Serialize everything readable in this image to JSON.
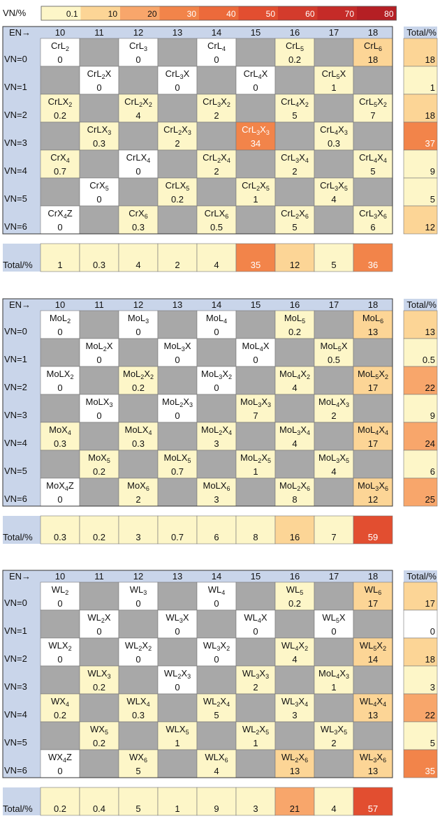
{
  "legend": {
    "label": "VN/%",
    "bins": [
      {
        "label": "0.1",
        "color": "#fdf6c8"
      },
      {
        "label": "10",
        "color": "#fcd596"
      },
      {
        "label": "20",
        "color": "#f8a66b"
      },
      {
        "label": "30",
        "color": "#f2844a"
      },
      {
        "label": "40",
        "color": "#ec6a3b"
      },
      {
        "label": "50",
        "color": "#e24e30"
      },
      {
        "label": "60",
        "color": "#d33b2c"
      },
      {
        "label": "70",
        "color": "#c52b28"
      },
      {
        "label": "80",
        "color": "#b51f24"
      }
    ]
  },
  "colors": {
    "header_bg": "#c9d5ea",
    "empty_cell": "#a8a8a8",
    "zero_cell": "#ffffff"
  },
  "chart_data": [
    {
      "type": "heatmap",
      "en_header": "EN→",
      "total_col_header": "Total/%",
      "total_row_label": "Total/%",
      "en": [
        "10",
        "11",
        "12",
        "13",
        "14",
        "15",
        "16",
        "17",
        "18"
      ],
      "vn": [
        "VN=0",
        "VN=1",
        "VN=2",
        "VN=3",
        "VN=4",
        "VN=5",
        "VN=6"
      ],
      "cells": [
        [
          [
            "CrL",
            "2",
            ""
          ],
          "0"
        ],
        [
          null
        ],
        [
          [
            "CrL",
            "3",
            ""
          ],
          "0"
        ],
        [
          null
        ],
        [
          [
            "CrL",
            "4",
            ""
          ],
          "0"
        ],
        [
          null
        ],
        [
          [
            "CrL",
            "5",
            ""
          ],
          "0.2"
        ],
        [
          null
        ],
        [
          [
            "CrL",
            "6",
            ""
          ],
          "18"
        ],
        [
          null
        ],
        [
          [
            "CrL",
            "2",
            "X"
          ],
          "0"
        ],
        [
          null
        ],
        [
          [
            "CrL",
            "3",
            "X"
          ],
          "0"
        ],
        [
          null
        ],
        [
          [
            "CrL",
            "4",
            "X"
          ],
          "0"
        ],
        [
          null
        ],
        [
          [
            "CrL",
            "5",
            "X"
          ],
          "1"
        ],
        [
          null
        ],
        [
          [
            "CrLX",
            "2",
            ""
          ],
          "0.2"
        ],
        [
          null
        ],
        [
          [
            "CrL",
            "2",
            "X",
            "2"
          ],
          "4"
        ],
        [
          null
        ],
        [
          [
            "CrL",
            "3",
            "X",
            "2"
          ],
          "2"
        ],
        [
          null
        ],
        [
          [
            "CrL",
            "4",
            "X",
            "2"
          ],
          "5"
        ],
        [
          null
        ],
        [
          [
            "CrL",
            "5",
            "X",
            "2"
          ],
          "7"
        ],
        [
          null
        ],
        [
          [
            "CrLX",
            "3",
            ""
          ],
          "0.3"
        ],
        [
          null
        ],
        [
          [
            "CrL",
            "2",
            "X",
            "3"
          ],
          "2"
        ],
        [
          null
        ],
        [
          [
            "CrL",
            "3",
            "X",
            "3"
          ],
          "34"
        ],
        [
          null
        ],
        [
          [
            "CrL",
            "4",
            "X",
            "3"
          ],
          "0.3"
        ],
        [
          null
        ],
        [
          [
            "CrX",
            "4",
            ""
          ],
          "0.7"
        ],
        [
          null
        ],
        [
          [
            "CrLX",
            "4",
            ""
          ],
          "0"
        ],
        [
          null
        ],
        [
          [
            "CrL",
            "2",
            "X",
            "4"
          ],
          "2"
        ],
        [
          null
        ],
        [
          [
            "CrL",
            "3",
            "X",
            "4"
          ],
          "2"
        ],
        [
          null
        ],
        [
          [
            "CrL",
            "4",
            "X",
            "4"
          ],
          "5"
        ],
        [
          null
        ],
        [
          [
            "CrX",
            "5",
            ""
          ],
          "0"
        ],
        [
          null
        ],
        [
          [
            "CrLX",
            "5",
            ""
          ],
          "0.2"
        ],
        [
          null
        ],
        [
          [
            "CrL",
            "2",
            "X",
            "5"
          ],
          "1"
        ],
        [
          null
        ],
        [
          [
            "CrL",
            "3",
            "X",
            "5"
          ],
          "4"
        ],
        [
          null
        ],
        [
          [
            "CrX",
            "4",
            "Z"
          ],
          "0"
        ],
        [
          null
        ],
        [
          [
            "CrX",
            "6",
            ""
          ],
          "0.3"
        ],
        [
          null
        ],
        [
          [
            "CrLX",
            "6",
            ""
          ],
          "0.5"
        ],
        [
          null
        ],
        [
          [
            "CrL",
            "2",
            "X",
            "6"
          ],
          "5"
        ],
        [
          null
        ],
        [
          [
            "CrL",
            "3",
            "X",
            "6"
          ],
          "6"
        ]
      ],
      "row_totals": [
        "18",
        "1",
        "18",
        "37",
        "9",
        "5",
        "12"
      ],
      "col_totals": [
        "1",
        "0.3",
        "4",
        "2",
        "4",
        "35",
        "12",
        "5",
        "36"
      ]
    },
    {
      "type": "heatmap",
      "en_header": "EN→",
      "total_col_header": "Total/%",
      "total_row_label": "Total/%",
      "en": [
        "10",
        "11",
        "12",
        "13",
        "14",
        "15",
        "16",
        "17",
        "18"
      ],
      "vn": [
        "VN=0",
        "VN=1",
        "VN=2",
        "VN=3",
        "VN=4",
        "VN=5",
        "VN=6"
      ],
      "cells": [
        [
          [
            "MoL",
            "2",
            ""
          ],
          "0"
        ],
        [
          null
        ],
        [
          [
            "MoL",
            "3",
            ""
          ],
          "0"
        ],
        [
          null
        ],
        [
          [
            "MoL",
            "4",
            ""
          ],
          "0"
        ],
        [
          null
        ],
        [
          [
            "MoL",
            "5",
            ""
          ],
          "0.2"
        ],
        [
          null
        ],
        [
          [
            "MoL",
            "6",
            ""
          ],
          "13"
        ],
        [
          null
        ],
        [
          [
            "MoL",
            "2",
            "X"
          ],
          "0"
        ],
        [
          null
        ],
        [
          [
            "MoL",
            "3",
            "X"
          ],
          "0"
        ],
        [
          null
        ],
        [
          [
            "MoL",
            "4",
            "X"
          ],
          "0"
        ],
        [
          null
        ],
        [
          [
            "MoL",
            "5",
            "X"
          ],
          "0.5"
        ],
        [
          null
        ],
        [
          [
            "MoLX",
            "2",
            ""
          ],
          "0"
        ],
        [
          null
        ],
        [
          [
            "MoL",
            "2",
            "X",
            "2"
          ],
          "0.2"
        ],
        [
          null
        ],
        [
          [
            "MoL",
            "3",
            "X",
            "2"
          ],
          "0"
        ],
        [
          null
        ],
        [
          [
            "MoL",
            "4",
            "X",
            "2"
          ],
          "4"
        ],
        [
          null
        ],
        [
          [
            "MoL",
            "5",
            "X",
            "2"
          ],
          "17"
        ],
        [
          null
        ],
        [
          [
            "MoLX",
            "3",
            ""
          ],
          "0"
        ],
        [
          null
        ],
        [
          [
            "MoL",
            "2",
            "X",
            "3"
          ],
          "0"
        ],
        [
          null
        ],
        [
          [
            "MoL",
            "3",
            "X",
            "3"
          ],
          "7"
        ],
        [
          null
        ],
        [
          [
            "MoL",
            "4",
            "X",
            "3"
          ],
          "2"
        ],
        [
          null
        ],
        [
          [
            "MoX",
            "4",
            ""
          ],
          "0.3"
        ],
        [
          null
        ],
        [
          [
            "MoLX",
            "4",
            ""
          ],
          "0.3"
        ],
        [
          null
        ],
        [
          [
            "MoL",
            "2",
            "X",
            "4"
          ],
          "3"
        ],
        [
          null
        ],
        [
          [
            "MoL",
            "3",
            "X",
            "4"
          ],
          "4"
        ],
        [
          null
        ],
        [
          [
            "MoL",
            "4",
            "X",
            "4"
          ],
          "17"
        ],
        [
          null
        ],
        [
          [
            "MoX",
            "5",
            ""
          ],
          "0.2"
        ],
        [
          null
        ],
        [
          [
            "MoLX",
            "5",
            ""
          ],
          "0.7"
        ],
        [
          null
        ],
        [
          [
            "MoL",
            "2",
            "X",
            "5"
          ],
          "1"
        ],
        [
          null
        ],
        [
          [
            "MoL",
            "3",
            "X",
            "5"
          ],
          "4"
        ],
        [
          null
        ],
        [
          [
            "MoX",
            "4",
            "Z"
          ],
          "0"
        ],
        [
          null
        ],
        [
          [
            "MoX",
            "6",
            ""
          ],
          "2"
        ],
        [
          null
        ],
        [
          [
            "MoLX",
            "6",
            ""
          ],
          "3"
        ],
        [
          null
        ],
        [
          [
            "MoL",
            "2",
            "X",
            "6"
          ],
          "8"
        ],
        [
          null
        ],
        [
          [
            "MoL",
            "3",
            "X",
            "6"
          ],
          "12"
        ]
      ],
      "row_totals": [
        "13",
        "0.5",
        "22",
        "9",
        "24",
        "6",
        "25"
      ],
      "col_totals": [
        "0.3",
        "0.2",
        "3",
        "0.7",
        "6",
        "8",
        "16",
        "7",
        "59"
      ]
    },
    {
      "type": "heatmap",
      "en_header": "EN→",
      "total_col_header": "Total/%",
      "total_row_label": "Total/%",
      "en": [
        "10",
        "11",
        "12",
        "13",
        "14",
        "15",
        "16",
        "17",
        "18"
      ],
      "vn": [
        "VN=0",
        "VN=1",
        "VN=2",
        "VN=3",
        "VN=4",
        "VN=5",
        "VN=6"
      ],
      "cells": [
        [
          [
            "WL",
            "2",
            ""
          ],
          "0"
        ],
        [
          null
        ],
        [
          [
            "WL",
            "3",
            ""
          ],
          "0"
        ],
        [
          null
        ],
        [
          [
            "WL",
            "4",
            ""
          ],
          "0"
        ],
        [
          null
        ],
        [
          [
            "WL",
            "5",
            ""
          ],
          "0.2"
        ],
        [
          null
        ],
        [
          [
            "WL",
            "6",
            ""
          ],
          "17"
        ],
        [
          null
        ],
        [
          [
            "WL",
            "2",
            "X"
          ],
          "0"
        ],
        [
          null
        ],
        [
          [
            "WL",
            "3",
            "X"
          ],
          "0"
        ],
        [
          null
        ],
        [
          [
            "WL",
            "4",
            "X"
          ],
          "0"
        ],
        [
          null
        ],
        [
          [
            "WL",
            "5",
            "X"
          ],
          "0"
        ],
        [
          null
        ],
        [
          [
            "WLX",
            "2",
            ""
          ],
          "0"
        ],
        [
          null
        ],
        [
          [
            "WL",
            "2",
            "X",
            "2"
          ],
          "0"
        ],
        [
          null
        ],
        [
          [
            "WL",
            "3",
            "X",
            "2"
          ],
          "0"
        ],
        [
          null
        ],
        [
          [
            "WL",
            "4",
            "X",
            "2"
          ],
          "4"
        ],
        [
          null
        ],
        [
          [
            "WL",
            "5",
            "X",
            "2"
          ],
          "14"
        ],
        [
          null
        ],
        [
          [
            "WLX",
            "3",
            ""
          ],
          "0.2"
        ],
        [
          null
        ],
        [
          [
            "WL",
            "2",
            "X",
            "3"
          ],
          "0"
        ],
        [
          null
        ],
        [
          [
            "WL",
            "3",
            "X",
            "3"
          ],
          "2"
        ],
        [
          null
        ],
        [
          [
            "MoL",
            "4",
            "X",
            "3"
          ],
          "1"
        ],
        [
          null
        ],
        [
          [
            "WX",
            "4",
            ""
          ],
          "0.2"
        ],
        [
          null
        ],
        [
          [
            "WLX",
            "4",
            ""
          ],
          "0.3"
        ],
        [
          null
        ],
        [
          [
            "WL",
            "2",
            "X",
            "4"
          ],
          "5"
        ],
        [
          null
        ],
        [
          [
            "WL",
            "3",
            "X",
            "4"
          ],
          "3"
        ],
        [
          null
        ],
        [
          [
            "WL",
            "4",
            "X",
            "4"
          ],
          "13"
        ],
        [
          null
        ],
        [
          [
            "WX",
            "5",
            ""
          ],
          "0.2"
        ],
        [
          null
        ],
        [
          [
            "WLX",
            "5",
            ""
          ],
          "1"
        ],
        [
          null
        ],
        [
          [
            "WL",
            "2",
            "X",
            "5"
          ],
          "1"
        ],
        [
          null
        ],
        [
          [
            "WL",
            "3",
            "X",
            "5"
          ],
          "2"
        ],
        [
          null
        ],
        [
          [
            "WX",
            "4",
            "Z"
          ],
          "0"
        ],
        [
          null
        ],
        [
          [
            "WX",
            "6",
            ""
          ],
          "5"
        ],
        [
          null
        ],
        [
          [
            "WLX",
            "6",
            ""
          ],
          "4"
        ],
        [
          null
        ],
        [
          [
            "WL",
            "2",
            "X",
            "6"
          ],
          "13"
        ],
        [
          null
        ],
        [
          [
            "WL",
            "3",
            "X",
            "6"
          ],
          "13"
        ]
      ],
      "row_totals": [
        "17",
        "0",
        "18",
        "3",
        "22",
        "5",
        "35"
      ],
      "col_totals": [
        "0.2",
        "0.4",
        "5",
        "1",
        "9",
        "3",
        "21",
        "4",
        "57"
      ]
    }
  ]
}
